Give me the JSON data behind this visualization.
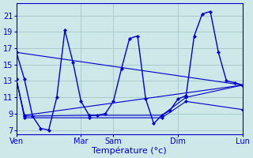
{
  "background_color": "#cce8e8",
  "grid_color": "#aacccc",
  "line_color": "#0000cc",
  "xlabel": "Température (°c)",
  "ylim": [
    6.5,
    22.5
  ],
  "yticks": [
    7,
    9,
    11,
    13,
    15,
    17,
    19,
    21
  ],
  "xlim": [
    0,
    28
  ],
  "day_labels": [
    "Ven",
    "Mar",
    "Sam",
    "Dim",
    "Lun"
  ],
  "day_x": [
    0,
    8,
    12,
    20,
    28
  ],
  "main_x": [
    0,
    1,
    2,
    3,
    4,
    5,
    6,
    7,
    8,
    9,
    10,
    11,
    12,
    13,
    14,
    15,
    16,
    17,
    18,
    19,
    20,
    21,
    22,
    23,
    24,
    25,
    26,
    27,
    28
  ],
  "main_y": [
    16.5,
    13.2,
    8.7,
    7.2,
    7.0,
    11.0,
    19.2,
    15.3,
    10.5,
    8.8,
    8.8,
    9.0,
    10.5,
    14.5,
    18.2,
    18.5,
    10.8,
    7.8,
    8.8,
    9.4,
    10.8,
    11.2,
    18.5,
    21.2,
    21.5,
    16.5,
    13.0,
    12.8,
    12.5
  ],
  "line2_x": [
    0,
    28
  ],
  "line2_y": [
    16.5,
    12.5
  ],
  "line3_x": [
    0,
    1,
    28
  ],
  "line3_y": [
    13.2,
    8.8,
    12.5
  ],
  "line4_x": [
    0,
    1,
    9,
    18,
    21,
    28
  ],
  "line4_y": [
    13.2,
    8.7,
    8.8,
    8.8,
    11.0,
    12.5
  ],
  "line5_x": [
    0,
    1,
    9,
    18,
    21,
    28
  ],
  "line5_y": [
    13.2,
    8.5,
    8.5,
    8.5,
    10.5,
    9.5
  ],
  "tick_fontsize": 7,
  "xlabel_fontsize": 8
}
